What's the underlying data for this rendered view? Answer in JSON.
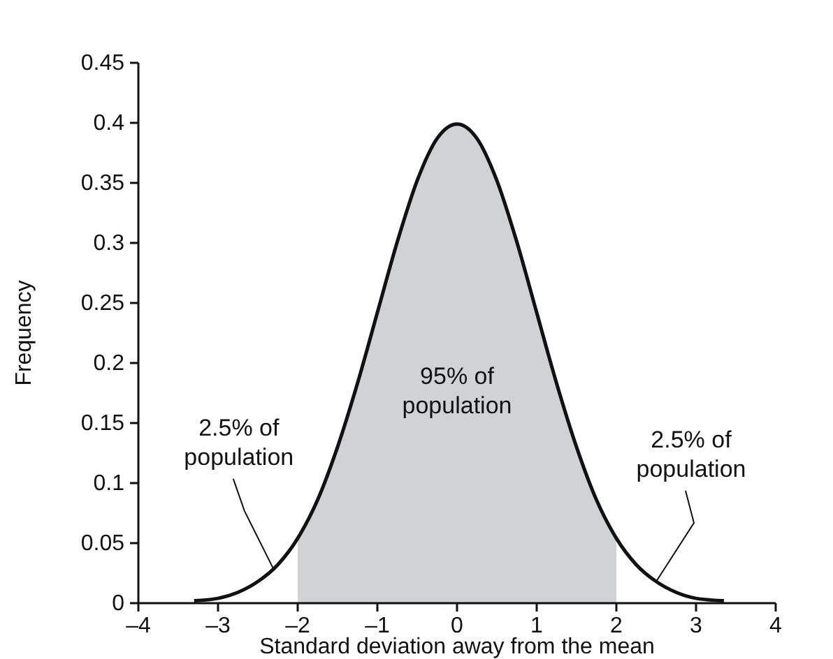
{
  "chart_data": {
    "type": "line",
    "xlabel": "Standard deviation away from the mean",
    "ylabel": "Frequency",
    "xlim": [
      -4,
      4
    ],
    "ylim": [
      0,
      0.45
    ],
    "xticks": [
      {
        "value": -4,
        "label": "–4"
      },
      {
        "value": -3,
        "label": "–3"
      },
      {
        "value": -2,
        "label": "–2"
      },
      {
        "value": -1,
        "label": "–1"
      },
      0,
      1,
      2,
      3,
      4
    ],
    "yticks": [
      0,
      0.05,
      0.1,
      0.15,
      0.2,
      0.25,
      0.3,
      0.35,
      0.4,
      0.45
    ],
    "series": [
      {
        "type": "area",
        "color": "#d1d2d4",
        "x": [
          -2,
          -1.75,
          -1.5,
          -1.25,
          -1,
          -0.75,
          -0.5,
          -0.25,
          0,
          0.25,
          0.5,
          0.75,
          1,
          1.25,
          1.5,
          1.75,
          2
        ],
        "values": [
          0.054,
          0.086,
          0.13,
          0.183,
          0.242,
          0.301,
          0.352,
          0.387,
          0.399,
          0.387,
          0.352,
          0.301,
          0.242,
          0.183,
          0.13,
          0.086,
          0.054
        ]
      },
      {
        "color": "#111111",
        "x": [
          -3.3,
          -3,
          -2.75,
          -2.5,
          -2.25,
          -2,
          -1.75,
          -1.5,
          -1.25,
          -1,
          -0.75,
          -0.5,
          -0.25,
          0,
          0.25,
          0.5,
          0.75,
          1,
          1.25,
          1.5,
          1.75,
          2,
          2.25,
          2.5,
          2.75,
          3,
          3.35
        ],
        "values": [
          0.002,
          0.004,
          0.009,
          0.018,
          0.032,
          0.054,
          0.086,
          0.13,
          0.183,
          0.242,
          0.301,
          0.352,
          0.387,
          0.399,
          0.387,
          0.352,
          0.301,
          0.242,
          0.183,
          0.13,
          0.086,
          0.054,
          0.032,
          0.018,
          0.009,
          0.004,
          0.002
        ]
      }
    ],
    "annotations": [
      "95% of\npopulation",
      {
        "text": "2.5% of\npopulation",
        "x": -2.3,
        "y": 0.028
      },
      {
        "text": "2.5% of\npopulation",
        "x": 2.5,
        "y": 0.018
      }
    ],
    "grid": false
  }
}
